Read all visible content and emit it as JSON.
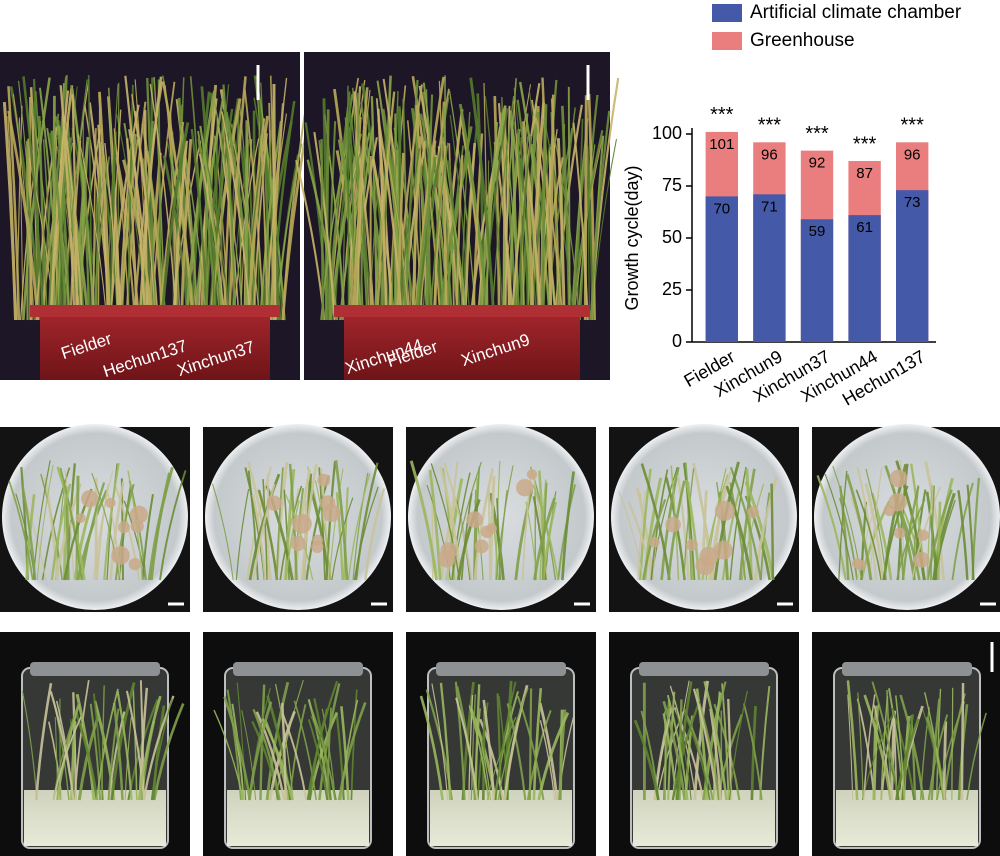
{
  "chart_data": {
    "type": "bar",
    "barmode": "overlay",
    "y_label": "Growth cycle(day)",
    "categories": [
      "Fielder",
      "Xinchun9",
      "Xinchun37",
      "Xinchun44",
      "Hechun137"
    ],
    "series": [
      {
        "name": "Greenhouse",
        "color": "#ea7d7d",
        "values": [
          101,
          96,
          92,
          87,
          96
        ]
      },
      {
        "name": "Artificial climate chamber",
        "color": "#4459a8",
        "values": [
          70,
          71,
          59,
          61,
          73
        ]
      }
    ],
    "annotations": [
      "***",
      "***",
      "***",
      "***",
      "***"
    ],
    "ylim": [
      0,
      100
    ],
    "yticks": [
      0,
      25,
      50,
      75,
      100
    ],
    "legend": "top"
  },
  "photos": {
    "left_pot_labels": [
      "Fielder",
      "Hechun137",
      "Xinchun37"
    ],
    "right_pot_labels": [
      "Xinchun44",
      "Fielder",
      "Xinchun9"
    ]
  }
}
